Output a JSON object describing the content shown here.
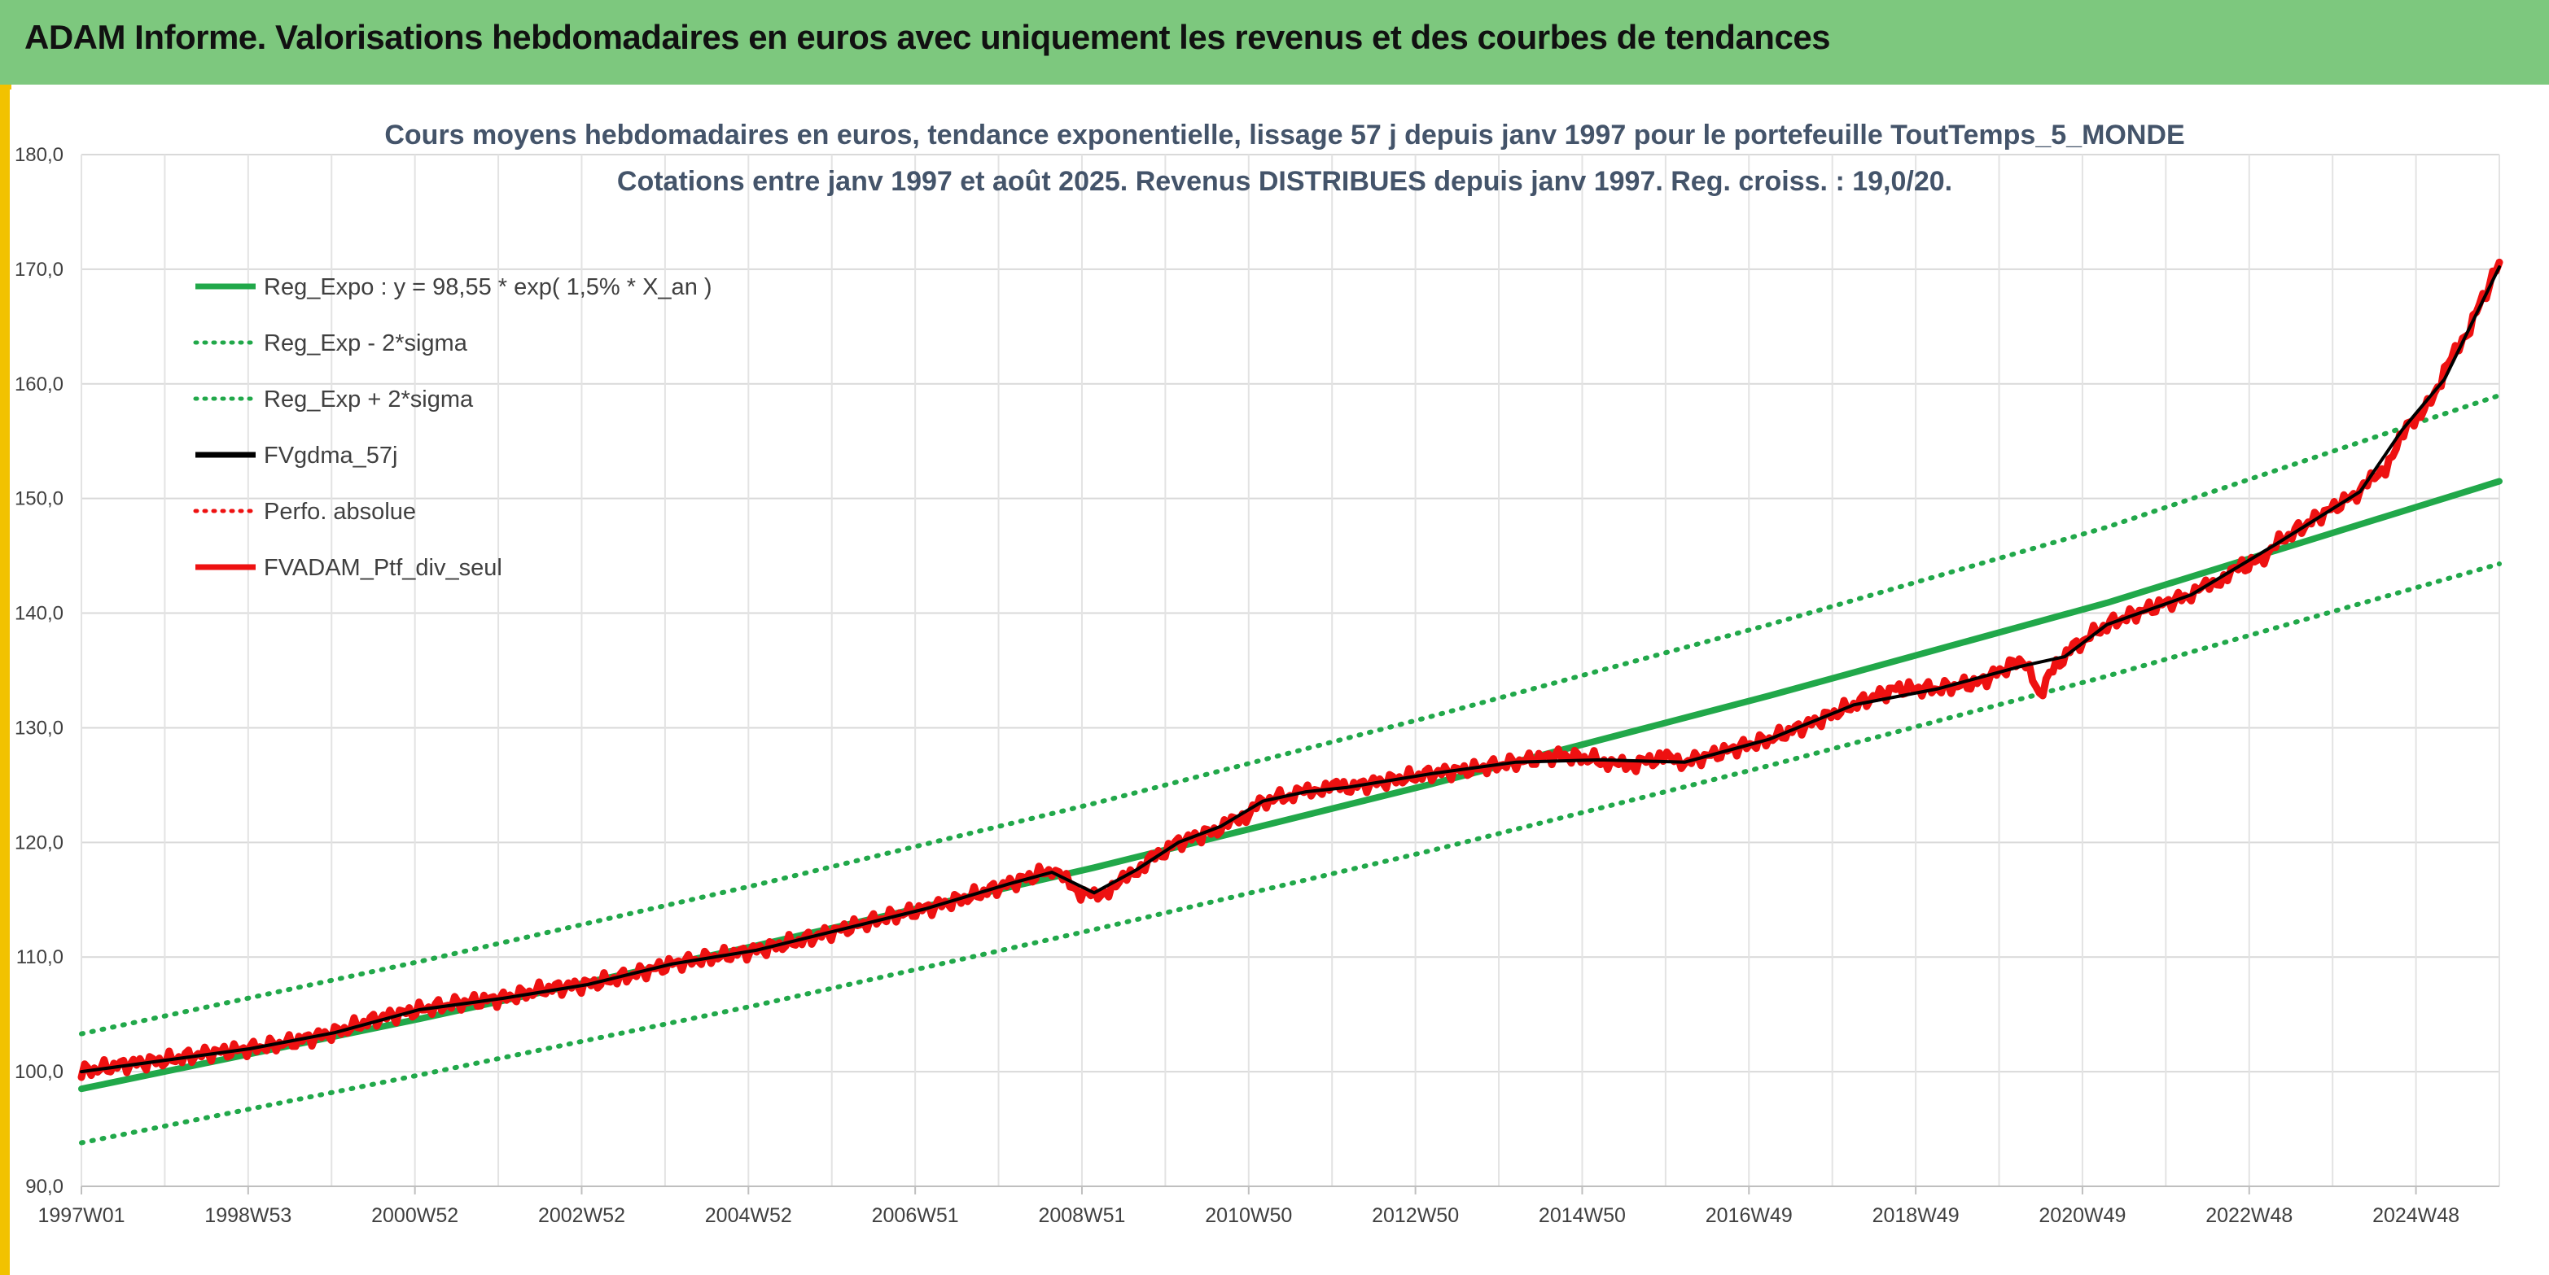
{
  "header": {
    "title": "ADAM Informe. Valorisations hebdomadaires en euros avec uniquement les revenus et des courbes de tendances"
  },
  "colors": {
    "banner": "#7dc87e",
    "frame": "#f2c200",
    "reg_green": "#21a84a",
    "series_red": "#ee1111",
    "smooth_black": "#000000"
  },
  "chart_data": {
    "type": "line",
    "title_line1": "Cours moyens hebdomadaires en euros, tendance exponentielle, lissage 57 j depuis janv 1997 pour le portefeuille ToutTemps_5_MONDE",
    "title_line2": "Cotations entre janv 1997 et août 2025. Revenus DISTRIBUES depuis janv 1997. Reg. croiss. : 19,0/20.",
    "ylim": [
      90,
      180
    ],
    "y_ticks": [
      "180,0",
      "170,0",
      "160,0",
      "150,0",
      "140,0",
      "130,0",
      "120,0",
      "110,0",
      "100,0",
      "90,0"
    ],
    "x_ticks": [
      "1997W01",
      "1998W53",
      "2000W52",
      "2002W52",
      "2004W52",
      "2006W51",
      "2008W51",
      "2010W50",
      "2012W50",
      "2014W50",
      "2016W49",
      "2018W49",
      "2020W49",
      "2022W48",
      "2024W48"
    ],
    "x_range_years": [
      1997.0,
      2025.65
    ],
    "grid": true,
    "legend_position": "top-left",
    "legend": [
      {
        "label": "Reg_Expo : y = 98,55 * exp( 1,5% *  X_an )",
        "style": "solid",
        "color": "#21a84a"
      },
      {
        "label": "Reg_Exp - 2*sigma",
        "style": "dotted",
        "color": "#21a84a"
      },
      {
        "label": "Reg_Exp + 2*sigma",
        "style": "dotted",
        "color": "#21a84a"
      },
      {
        "label": "FVgdma_57j",
        "style": "solid",
        "color": "#000000"
      },
      {
        "label": "Perfo. absolue",
        "style": "dotted",
        "color": "#ee1111"
      },
      {
        "label": "FVADAM_Ptf_div_seul",
        "style": "solid",
        "color": "#ee1111"
      }
    ],
    "series": [
      {
        "name": "Reg_Expo : y = 98,55 * exp( 1,5% *  X_an )",
        "x": [
          1997.0,
          2001.0,
          2005.0,
          2009.0,
          2013.0,
          2017.0,
          2021.0,
          2025.65
        ],
        "y": [
          98.5,
          104.6,
          111.0,
          117.8,
          125.1,
          132.8,
          140.9,
          151.5
        ]
      },
      {
        "name": "Reg_Exp - 2*sigma",
        "x": [
          1997.0,
          2001.0,
          2005.0,
          2009.0,
          2013.0,
          2017.0,
          2021.0,
          2025.65
        ],
        "y": [
          93.8,
          99.7,
          105.8,
          112.4,
          119.3,
          126.7,
          134.5,
          144.3
        ]
      },
      {
        "name": "Reg_Exp + 2*sigma",
        "x": [
          1997.0,
          2001.0,
          2005.0,
          2009.0,
          2013.0,
          2017.0,
          2021.0,
          2025.65
        ],
        "y": [
          103.3,
          109.6,
          116.3,
          123.4,
          131.0,
          139.0,
          147.5,
          159.0
        ]
      },
      {
        "name": "FVADAM_Ptf_div_seul",
        "x": [
          1997.0,
          1997.5,
          1998.0,
          1998.5,
          1999.0,
          1999.5,
          2000.0,
          2000.5,
          2001.0,
          2001.5,
          2002.0,
          2002.5,
          2003.0,
          2003.5,
          2004.0,
          2004.5,
          2005.0,
          2005.5,
          2006.0,
          2006.5,
          2007.0,
          2007.5,
          2008.0,
          2008.5,
          2008.8,
          2009.0,
          2009.3,
          2009.6,
          2010.0,
          2010.5,
          2010.8,
          2011.0,
          2011.4,
          2011.7,
          2012.0,
          2012.5,
          2013.0,
          2013.5,
          2014.0,
          2014.5,
          2015.0,
          2015.3,
          2015.7,
          2016.0,
          2016.5,
          2017.0,
          2017.5,
          2018.0,
          2018.5,
          2019.0,
          2019.5,
          2020.0,
          2020.2,
          2020.4,
          2020.6,
          2021.0,
          2021.5,
          2022.0,
          2022.3,
          2022.6,
          2022.9,
          2023.0,
          2023.5,
          2024.0,
          2024.3,
          2024.6,
          2024.8,
          2025.0,
          2025.3,
          2025.65
        ],
        "y": [
          100.0,
          100.6,
          101.0,
          101.6,
          102.0,
          102.6,
          103.4,
          104.6,
          105.4,
          106.0,
          106.4,
          107.2,
          107.6,
          108.4,
          109.4,
          110.0,
          110.6,
          111.4,
          112.4,
          113.4,
          114.2,
          115.2,
          116.4,
          117.6,
          115.8,
          115.3,
          116.4,
          118.2,
          120.0,
          121.2,
          122.4,
          123.6,
          124.2,
          124.8,
          124.8,
          125.4,
          126.0,
          126.4,
          127.0,
          127.6,
          127.2,
          126.6,
          127.4,
          127.0,
          128.0,
          129.0,
          130.4,
          132.0,
          133.4,
          133.4,
          134.0,
          136.0,
          133.0,
          135.5,
          137.0,
          139.0,
          140.4,
          141.6,
          142.8,
          144.0,
          145.0,
          146.0,
          148.4,
          150.6,
          152.8,
          156.6,
          158.0,
          161.0,
          165.0,
          170.6
        ]
      },
      {
        "name": "FVgdma_57j",
        "x": [
          1997.0,
          1998.0,
          1999.0,
          2000.0,
          2001.0,
          2002.0,
          2003.0,
          2004.0,
          2005.0,
          2006.0,
          2007.0,
          2008.0,
          2008.5,
          2009.0,
          2009.5,
          2010.0,
          2010.5,
          2011.0,
          2011.5,
          2012.0,
          2013.0,
          2014.0,
          2015.0,
          2016.0,
          2017.0,
          2018.0,
          2019.0,
          2020.0,
          2020.5,
          2021.0,
          2022.0,
          2023.0,
          2024.0,
          2024.5,
          2025.0,
          2025.65
        ],
        "y": [
          100.0,
          101.0,
          102.0,
          103.4,
          105.4,
          106.4,
          107.6,
          109.4,
          110.6,
          112.4,
          114.2,
          116.4,
          117.4,
          115.6,
          117.6,
          120.0,
          121.4,
          123.6,
          124.4,
          124.8,
          126.0,
          127.0,
          127.2,
          127.0,
          129.0,
          132.0,
          133.4,
          135.4,
          136.2,
          139.0,
          141.6,
          146.0,
          150.6,
          156.0,
          160.4,
          170.2
        ]
      }
    ]
  }
}
